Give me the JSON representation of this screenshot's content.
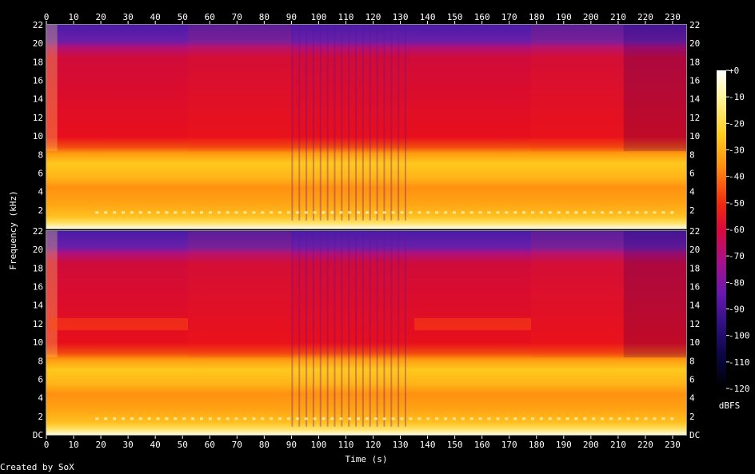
{
  "chart_data": {
    "type": "heatmap",
    "title": "",
    "xlabel": "Time (s)",
    "ylabel": "Frequency (kHz)",
    "xlim": [
      0,
      235
    ],
    "x_ticks": [
      "0",
      "10",
      "20",
      "30",
      "40",
      "50",
      "60",
      "70",
      "80",
      "90",
      "100",
      "110",
      "120",
      "130",
      "140",
      "150",
      "160",
      "170",
      "180",
      "190",
      "200",
      "210",
      "220",
      "230"
    ],
    "y_ticks_top": [
      "22",
      "20",
      "18",
      "16",
      "14",
      "12",
      "10",
      "8",
      "6",
      "4",
      "2"
    ],
    "y_ticks_bottom": [
      "22",
      "20",
      "18",
      "16",
      "14",
      "12",
      "10",
      "8",
      "6",
      "4",
      "2",
      "DC"
    ],
    "ylim_khz": [
      0,
      22
    ],
    "channels": 2,
    "colorbar": {
      "label": "dBFS",
      "ticks": [
        "+0",
        "-10",
        "-20",
        "-30",
        "-40",
        "-50",
        "-60",
        "-70",
        "-80",
        "-90",
        "-100",
        "-110",
        "-120"
      ],
      "range": [
        -120,
        0
      ]
    },
    "segments": [
      {
        "start": 0,
        "end": 4,
        "level": "loud"
      },
      {
        "start": 4,
        "end": 52,
        "level": "mid"
      },
      {
        "start": 52,
        "end": 90,
        "level": "mid-high"
      },
      {
        "start": 90,
        "end": 134,
        "level": "pulsed"
      },
      {
        "start": 134,
        "end": 178,
        "level": "mid"
      },
      {
        "start": 178,
        "end": 212,
        "level": "mid-high"
      },
      {
        "start": 212,
        "end": 235,
        "level": "low"
      }
    ]
  },
  "footer": {
    "credit": "Created by SoX"
  }
}
